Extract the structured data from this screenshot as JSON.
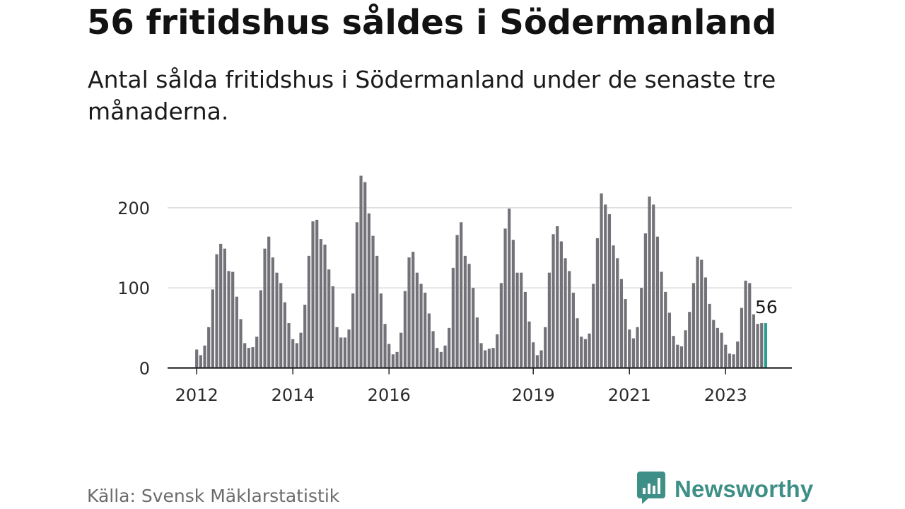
{
  "title": "56 fritidshus såldes i Södermanland",
  "subtitle": "Antal sålda fritidshus i Södermanland under de senaste tre månaderna.",
  "source": "Källa: Svensk Mäklarstatistik",
  "brand": {
    "name": "Newsworthy",
    "icon": "newsworthy-logo-icon",
    "color": "#3e8f87"
  },
  "colors": {
    "bar": "#737278",
    "highlight": "#2a9d93",
    "grid": "#d9d9d9",
    "axis": "#222222"
  },
  "chart_data": {
    "type": "bar",
    "title": "56 fritidshus såldes i Södermanland",
    "xlabel": "",
    "ylabel": "",
    "ylim": [
      0,
      245
    ],
    "yticks": [
      0,
      100,
      200
    ],
    "grid": true,
    "legend": "none",
    "x_tick_labels": [
      {
        "label": "2012",
        "index": 0
      },
      {
        "label": "2014",
        "index": 24
      },
      {
        "label": "2016",
        "index": 48
      },
      {
        "label": "2019",
        "index": 84
      },
      {
        "label": "2021",
        "index": 108
      },
      {
        "label": "2023",
        "index": 132
      }
    ],
    "start": "2012-01",
    "highlight_index": 142,
    "highlight_label": "56",
    "values": [
      23,
      16,
      28,
      51,
      98,
      142,
      155,
      149,
      121,
      120,
      89,
      61,
      31,
      25,
      26,
      39,
      97,
      149,
      164,
      138,
      119,
      106,
      82,
      56,
      36,
      31,
      44,
      79,
      140,
      183,
      185,
      161,
      154,
      123,
      102,
      51,
      38,
      38,
      48,
      93,
      182,
      240,
      232,
      193,
      165,
      140,
      93,
      55,
      30,
      17,
      20,
      44,
      96,
      138,
      145,
      119,
      105,
      94,
      68,
      46,
      25,
      20,
      28,
      50,
      125,
      166,
      182,
      140,
      130,
      100,
      63,
      31,
      22,
      24,
      25,
      42,
      106,
      174,
      199,
      160,
      119,
      119,
      95,
      58,
      32,
      16,
      22,
      51,
      119,
      167,
      177,
      158,
      137,
      121,
      94,
      62,
      39,
      36,
      43,
      105,
      162,
      218,
      204,
      192,
      153,
      137,
      111,
      86,
      48,
      37,
      51,
      100,
      168,
      214,
      204,
      164,
      120,
      95,
      69,
      40,
      29,
      27,
      47,
      70,
      106,
      139,
      135,
      113,
      80,
      60,
      50,
      44,
      29,
      18,
      17,
      33,
      75,
      109,
      106,
      67,
      55,
      56,
      56
    ]
  }
}
